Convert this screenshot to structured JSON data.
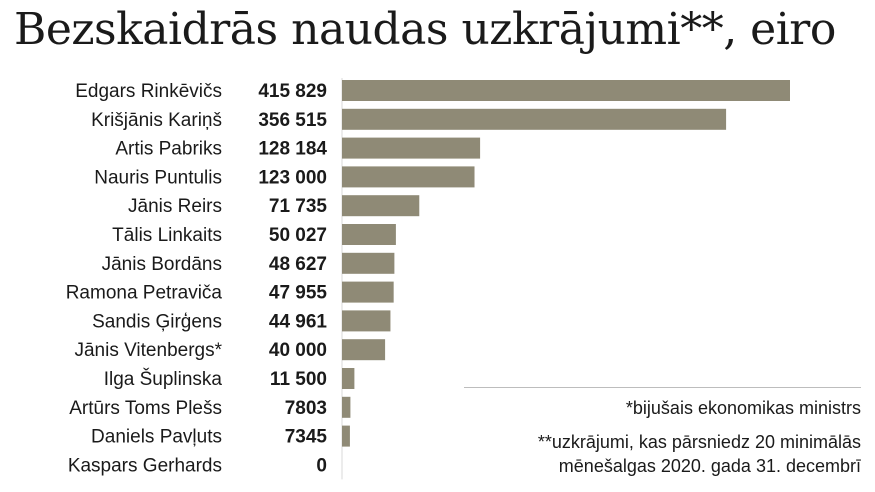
{
  "chart_data": {
    "type": "bar",
    "orientation": "horizontal",
    "title": "Bezskaidrās naudas uzkrājumi**, eiro",
    "categories": [
      "Edgars Rinkēvičs",
      "Krišjānis Kariņš",
      "Artis Pabriks",
      "Nauris Puntulis",
      "Jānis Reirs",
      "Tālis Linkaits",
      "Jānis Bordāns",
      "Ramona Petraviča",
      "Sandis Ģirģens",
      "Jānis Vitenbergs*",
      "Ilga Šuplinska",
      "Artūrs Toms Plešs",
      "Daniels Pavļuts",
      "Kaspars Gerhards"
    ],
    "values": [
      415829,
      356515,
      128184,
      123000,
      71735,
      50027,
      48627,
      47955,
      44961,
      40000,
      11500,
      7803,
      7345,
      0
    ],
    "value_labels": [
      "415 829",
      "356 515",
      "128 184",
      "123 000",
      "71 735",
      "50 027",
      "48 627",
      "47 955",
      "44 961",
      "40 000",
      "11 500",
      "7803",
      "7345",
      "0"
    ],
    "xlim": [
      0,
      415829
    ],
    "bar_color": "#8f8a76",
    "footnotes": [
      "*bijušais ekonomikas ministrs",
      "**uzkrājumi, kas pārsniedz 20 minimālās",
      "mēnešalgas 2020. gada 31. decembrī"
    ]
  }
}
